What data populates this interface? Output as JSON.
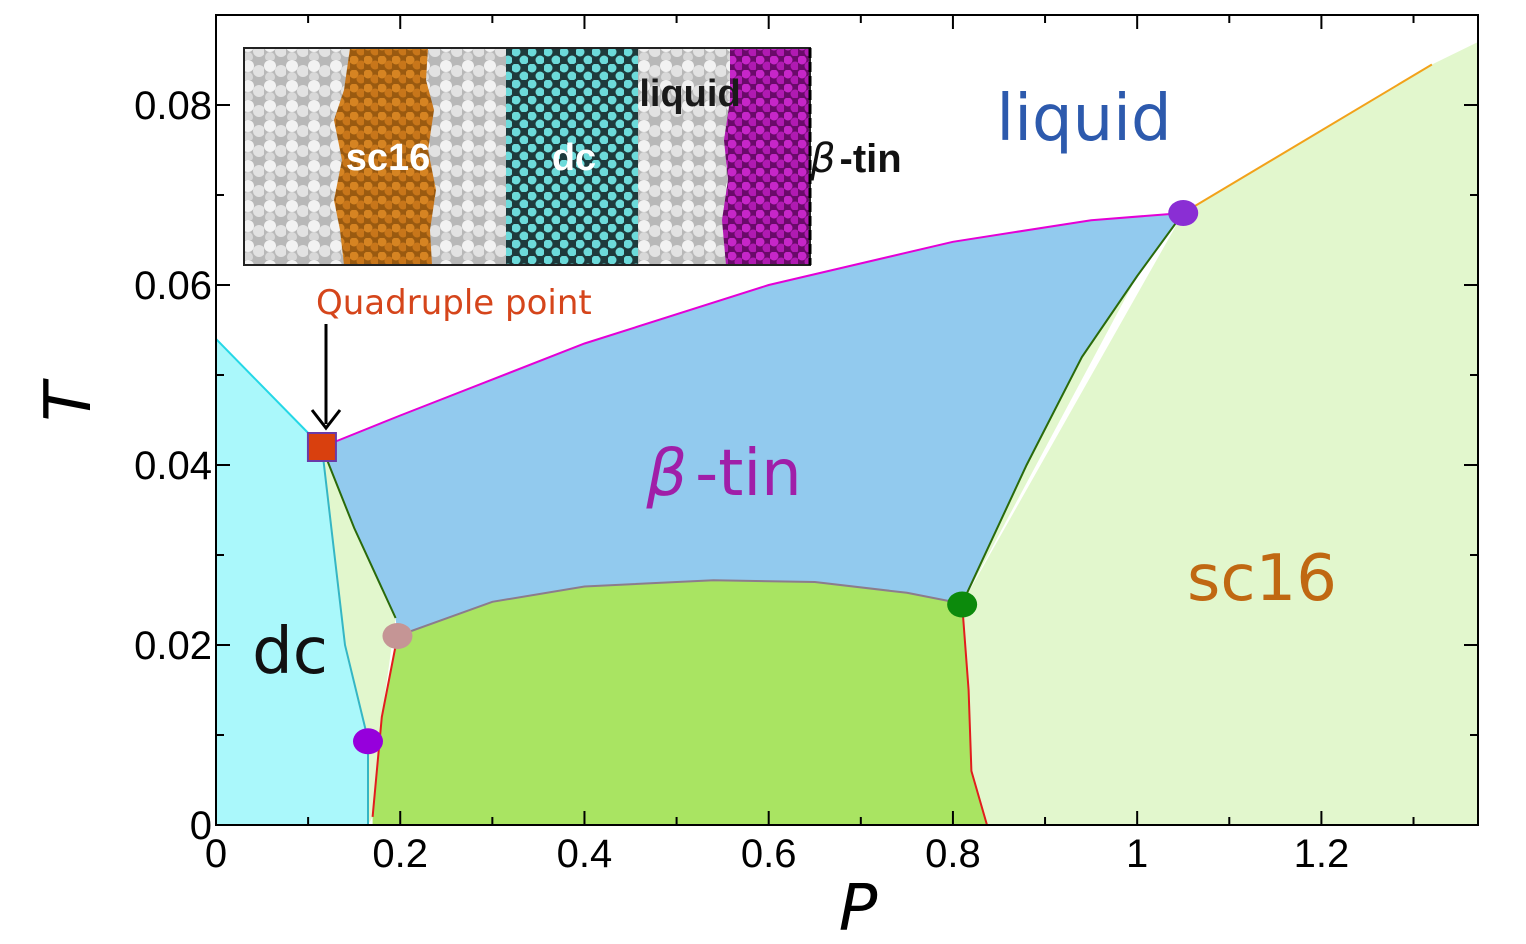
{
  "chart_data": {
    "type": "area",
    "title": "",
    "xlabel": "P",
    "ylabel": "T",
    "xlim": [
      0,
      1.37
    ],
    "ylim": [
      0,
      0.09
    ],
    "x_ticks": [
      "0",
      "0.2",
      "0.4",
      "0.6",
      "0.8",
      "1",
      "1.2"
    ],
    "x_tick_values": [
      0,
      0.2,
      0.4,
      0.6,
      0.8,
      1.0,
      1.2
    ],
    "y_ticks": [
      "0",
      "0.02",
      "0.04",
      "0.06",
      "0.08"
    ],
    "y_tick_values": [
      0,
      0.02,
      0.04,
      0.06,
      0.08
    ],
    "grid": false,
    "colors": {
      "dc": "#aaf8fb",
      "sc16": "#e2f7cd",
      "beta_tin": "#92caee",
      "green_phase": "#a9e462",
      "liquid_beta_boundary": "#e400d6",
      "dc_liquid_boundary": "#25d7e6",
      "dc_boundary_lower": "#35b6c4",
      "dark_green_boundary": "#2a6a0a",
      "red_boundary": "#e21d1d",
      "gray_boundary": "#8c7c8c",
      "orange_boundary": "#f2a21a",
      "quadruple": "#d9400e",
      "purple_point": "#8a2ed4",
      "violet_point": "#9600dc",
      "green_point": "#0c8a0c",
      "pink_point": "#c59595"
    },
    "boundaries": [
      {
        "name": "dc-liquid",
        "points": [
          [
            0,
            0.054
          ],
          [
            0.115,
            0.042
          ]
        ]
      },
      {
        "name": "liquid-beta-tin",
        "points": [
          [
            0.115,
            0.042
          ],
          [
            0.2,
            0.0455
          ],
          [
            0.4,
            0.0535
          ],
          [
            0.6,
            0.06
          ],
          [
            0.8,
            0.0648
          ],
          [
            0.95,
            0.0672
          ],
          [
            1.05,
            0.068
          ]
        ]
      },
      {
        "name": "liquid-sc16",
        "points": [
          [
            1.05,
            0.068
          ],
          [
            1.32,
            0.0845
          ]
        ]
      },
      {
        "name": "dc-sc16",
        "points": [
          [
            0.115,
            0.042
          ],
          [
            0.14,
            0.02
          ],
          [
            0.165,
            0.0095
          ],
          [
            0.165,
            0
          ]
        ]
      },
      {
        "name": "beta-tin-sc16-left",
        "points": [
          [
            0.115,
            0.042
          ],
          [
            0.15,
            0.033
          ],
          [
            0.195,
            0.023
          ]
        ]
      },
      {
        "name": "beta-tin-green",
        "points": [
          [
            0.197,
            0.021
          ],
          [
            0.3,
            0.0248
          ],
          [
            0.4,
            0.0265
          ],
          [
            0.54,
            0.0272
          ],
          [
            0.65,
            0.027
          ],
          [
            0.75,
            0.0258
          ],
          [
            0.81,
            0.0246
          ]
        ]
      },
      {
        "name": "green-sc16-left",
        "points": [
          [
            0.197,
            0.021
          ],
          [
            0.18,
            0.012
          ],
          [
            0.17,
            0.0009
          ]
        ]
      },
      {
        "name": "beta-tin-sc16-right",
        "points": [
          [
            0.81,
            0.0246
          ],
          [
            0.88,
            0.04
          ],
          [
            0.94,
            0.052
          ],
          [
            1.0,
            0.061
          ],
          [
            1.05,
            0.068
          ]
        ]
      },
      {
        "name": "green-sc16-right",
        "points": [
          [
            0.81,
            0.0246
          ],
          [
            0.817,
            0.015
          ],
          [
            0.82,
            0.006
          ],
          [
            0.837,
            0
          ]
        ]
      }
    ],
    "points": [
      {
        "name": "quadruple",
        "x": 0.115,
        "y": 0.042,
        "shape": "square"
      },
      {
        "name": "triple-liquid-sc16",
        "x": 1.05,
        "y": 0.068,
        "shape": "circle"
      },
      {
        "name": "triple-green-right",
        "x": 0.81,
        "y": 0.0245,
        "shape": "circle"
      },
      {
        "name": "triple-pink",
        "x": 0.197,
        "y": 0.021,
        "shape": "circle"
      },
      {
        "name": "triple-violet",
        "x": 0.165,
        "y": 0.0093,
        "shape": "circle"
      }
    ],
    "labels": {
      "liquid": "liquid",
      "beta_tin_symbol": "β",
      "beta_tin_suffix": "-tin",
      "sc16": "sc16",
      "dc": "dc",
      "quadruple_point": "Quadruple point"
    },
    "inset": {
      "labels": [
        "sc16",
        "dc",
        "liquid"
      ],
      "beta_symbol": "β",
      "beta_suffix": "-tin"
    }
  }
}
